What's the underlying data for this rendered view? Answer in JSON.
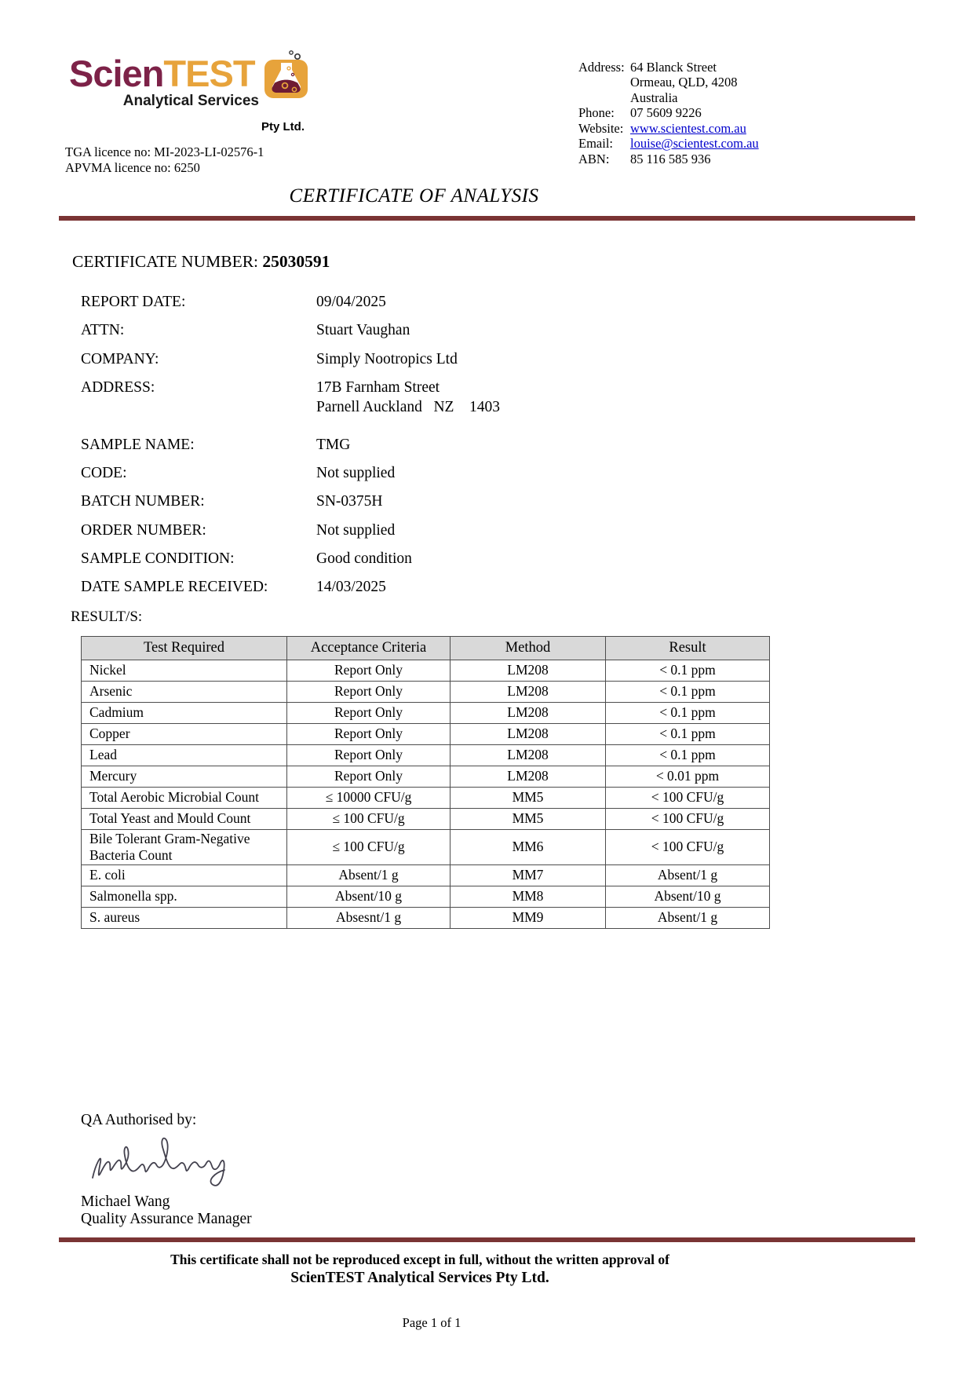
{
  "logo": {
    "brand_part1": "Scien",
    "brand_part2": "TEST",
    "subtitle": "Analytical Services",
    "suffix": "Pty Ltd."
  },
  "licences": {
    "tga": "TGA licence no: MI-2023-LI-02576-1",
    "apvma": "APVMA licence no: 6250"
  },
  "contact": {
    "rows": [
      {
        "label": "Address:",
        "value": "64 Blanck Street",
        "link": false
      },
      {
        "label": "",
        "value": "Ormeau, QLD, 4208",
        "link": false
      },
      {
        "label": "",
        "value": "Australia",
        "link": false
      },
      {
        "label": "Phone:",
        "value": "07 5609 9226",
        "link": false
      },
      {
        "label": "Website:",
        "value": "www.scientest.com.au",
        "link": true
      },
      {
        "label": "Email:",
        "value": "louise@scientest.com.au",
        "link": true
      },
      {
        "label": "ABN:",
        "value": "85 116 585 936",
        "link": false
      }
    ]
  },
  "title": "CERTIFICATE OF ANALYSIS",
  "certificate": {
    "label": "CERTIFICATE NUMBER: ",
    "number": "25030591"
  },
  "fields": [
    {
      "label": "REPORT DATE:",
      "lines": [
        "09/04/2025"
      ]
    },
    {
      "label": "ATTN:",
      "lines": [
        "Stuart Vaughan"
      ]
    },
    {
      "label": "COMPANY:",
      "lines": [
        "Simply Nootropics Ltd"
      ]
    },
    {
      "label": "ADDRESS:",
      "lines": [
        "17B Farnham Street",
        "Parnell Auckland   NZ    1403"
      ]
    },
    {
      "label": "SAMPLE NAME:",
      "lines": [
        "TMG"
      ],
      "gap_before": true
    },
    {
      "label": "CODE:",
      "lines": [
        "Not supplied"
      ]
    },
    {
      "label": "BATCH NUMBER:",
      "lines": [
        "SN-0375H"
      ]
    },
    {
      "label": "ORDER NUMBER:",
      "lines": [
        "Not supplied"
      ]
    },
    {
      "label": "SAMPLE CONDITION:",
      "lines": [
        "Good condition"
      ]
    },
    {
      "label": "DATE SAMPLE RECEIVED:",
      "lines": [
        "14/03/2025"
      ]
    }
  ],
  "results": {
    "section_label": "RESULT/S:",
    "columns": [
      "Test Required",
      "Acceptance Criteria",
      "Method",
      "Result"
    ],
    "rows": [
      {
        "test": "Nickel",
        "criteria": "Report Only",
        "method": "LM208",
        "result": "< 0.1 ppm"
      },
      {
        "test": "Arsenic",
        "criteria": "Report Only",
        "method": "LM208",
        "result": "< 0.1 ppm"
      },
      {
        "test": "Cadmium",
        "criteria": "Report Only",
        "method": "LM208",
        "result": "< 0.1 ppm"
      },
      {
        "test": "Copper",
        "criteria": "Report Only",
        "method": "LM208",
        "result": "< 0.1 ppm"
      },
      {
        "test": "Lead",
        "criteria": "Report Only",
        "method": "LM208",
        "result": "< 0.1 ppm"
      },
      {
        "test": "Mercury",
        "criteria": "Report Only",
        "method": "LM208",
        "result": "< 0.01 ppm"
      },
      {
        "test": "Total Aerobic Microbial Count",
        "criteria": "≤ 10000 CFU/g",
        "method": "MM5",
        "result": "< 100 CFU/g"
      },
      {
        "test": "Total Yeast and Mould Count",
        "criteria": "≤ 100 CFU/g",
        "method": "MM5",
        "result": "< 100 CFU/g"
      },
      {
        "test": "Bile Tolerant Gram-Negative Bacteria Count",
        "criteria": "≤ 100 CFU/g",
        "method": "MM6",
        "result": "< 100 CFU/g"
      },
      {
        "test": "E. coli",
        "criteria": "Absent/1 g",
        "method": "MM7",
        "result": "Absent/1 g"
      },
      {
        "test": "Salmonella spp.",
        "criteria": "Absent/10 g",
        "method": "MM8",
        "result": "Absent/10 g"
      },
      {
        "test": "S. aureus",
        "criteria": "Absesnt/1 g",
        "method": "MM9",
        "result": "Absent/1 g"
      }
    ]
  },
  "signature": {
    "label": "QA Authorised by:",
    "name": "Michael Wang",
    "title": "Quality Assurance Manager"
  },
  "footer": {
    "line1": "This certificate shall not be reproduced except in full, without the written approval of",
    "line2": "ScienTEST Analytical Services Pty Ltd.",
    "page": "Page 1 of 1"
  },
  "colors": {
    "brand_maroon": "#7D2248",
    "brand_orange": "#E7A33B",
    "rule_maroon": "#7A3434",
    "link_blue": "#0000CC",
    "table_header_bg": "#D9D9D9",
    "flask_liquid": "#6E1B33"
  }
}
